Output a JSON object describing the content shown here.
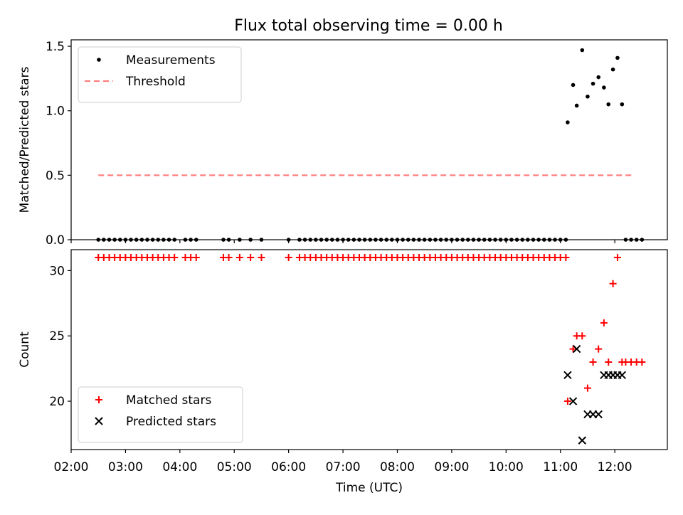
{
  "figure": {
    "title": "Flux total observing time = 0.00 h"
  },
  "chart_data": [
    {
      "type": "scatter",
      "ylabel": "Matched/Predicted stars",
      "xlabel": "",
      "x_format": "HH:MM",
      "xlim": [
        "02:00",
        "12:58"
      ],
      "ylim": [
        0,
        1.55
      ],
      "y_ticks": [
        0.0,
        0.5,
        1.0,
        1.5
      ],
      "y_tick_labels": [
        "0.0",
        "0.5",
        "1.0",
        "1.5"
      ],
      "legend_position": "upper-left",
      "grid": false,
      "series": [
        {
          "name": "Measurements",
          "marker": "dot",
          "color": "#000000",
          "points": [
            [
              "02:30",
              0
            ],
            [
              "02:36",
              0
            ],
            [
              "02:42",
              0
            ],
            [
              "02:48",
              0
            ],
            [
              "02:54",
              0
            ],
            [
              "03:00",
              0
            ],
            [
              "03:06",
              0
            ],
            [
              "03:12",
              0
            ],
            [
              "03:18",
              0
            ],
            [
              "03:24",
              0
            ],
            [
              "03:30",
              0
            ],
            [
              "03:36",
              0
            ],
            [
              "03:42",
              0
            ],
            [
              "03:48",
              0
            ],
            [
              "03:54",
              0
            ],
            [
              "04:06",
              0
            ],
            [
              "04:12",
              0
            ],
            [
              "04:18",
              0
            ],
            [
              "04:48",
              0
            ],
            [
              "04:54",
              0
            ],
            [
              "05:06",
              0
            ],
            [
              "05:18",
              0
            ],
            [
              "05:30",
              0
            ],
            [
              "06:00",
              0
            ],
            [
              "06:12",
              0
            ],
            [
              "06:18",
              0
            ],
            [
              "06:24",
              0
            ],
            [
              "06:30",
              0
            ],
            [
              "06:36",
              0
            ],
            [
              "06:42",
              0
            ],
            [
              "06:48",
              0
            ],
            [
              "06:54",
              0
            ],
            [
              "07:00",
              0
            ],
            [
              "07:06",
              0
            ],
            [
              "07:12",
              0
            ],
            [
              "07:18",
              0
            ],
            [
              "07:24",
              0
            ],
            [
              "07:30",
              0
            ],
            [
              "07:36",
              0
            ],
            [
              "07:42",
              0
            ],
            [
              "07:48",
              0
            ],
            [
              "07:54",
              0
            ],
            [
              "08:00",
              0
            ],
            [
              "08:06",
              0
            ],
            [
              "08:12",
              0
            ],
            [
              "08:18",
              0
            ],
            [
              "08:24",
              0
            ],
            [
              "08:30",
              0
            ],
            [
              "08:36",
              0
            ],
            [
              "08:42",
              0
            ],
            [
              "08:48",
              0
            ],
            [
              "08:54",
              0
            ],
            [
              "09:00",
              0
            ],
            [
              "09:06",
              0
            ],
            [
              "09:12",
              0
            ],
            [
              "09:18",
              0
            ],
            [
              "09:24",
              0
            ],
            [
              "09:30",
              0
            ],
            [
              "09:36",
              0
            ],
            [
              "09:42",
              0
            ],
            [
              "09:48",
              0
            ],
            [
              "09:54",
              0
            ],
            [
              "10:00",
              0
            ],
            [
              "10:06",
              0
            ],
            [
              "10:12",
              0
            ],
            [
              "10:18",
              0
            ],
            [
              "10:24",
              0
            ],
            [
              "10:30",
              0
            ],
            [
              "10:36",
              0
            ],
            [
              "10:42",
              0
            ],
            [
              "10:48",
              0
            ],
            [
              "10:54",
              0
            ],
            [
              "11:00",
              0
            ],
            [
              "11:06",
              0
            ],
            [
              "11:08",
              0.91
            ],
            [
              "11:14",
              1.2
            ],
            [
              "11:18",
              1.04
            ],
            [
              "11:24",
              1.47
            ],
            [
              "11:30",
              1.11
            ],
            [
              "11:36",
              1.21
            ],
            [
              "11:42",
              1.26
            ],
            [
              "11:48",
              1.18
            ],
            [
              "11:53",
              1.05
            ],
            [
              "11:58",
              1.32
            ],
            [
              "12:03",
              1.41
            ],
            [
              "12:08",
              1.05
            ],
            [
              "12:12",
              0
            ],
            [
              "12:18",
              0
            ],
            [
              "12:24",
              0
            ],
            [
              "12:30",
              0
            ]
          ]
        },
        {
          "name": "Threshold",
          "marker": "dashed-line",
          "color": "#ff7f7f",
          "points": [
            [
              "02:30",
              0.5
            ],
            [
              "12:20",
              0.5
            ]
          ]
        }
      ]
    },
    {
      "type": "scatter",
      "ylabel": "Count",
      "xlabel": "Time (UTC)",
      "x_format": "HH:MM",
      "xlim": [
        "02:00",
        "12:58"
      ],
      "ylim": [
        16.3,
        31.6
      ],
      "y_ticks": [
        20,
        25,
        30
      ],
      "y_tick_labels": [
        "20",
        "25",
        "30"
      ],
      "x_ticks": [
        "02:00",
        "03:00",
        "04:00",
        "05:00",
        "06:00",
        "07:00",
        "08:00",
        "09:00",
        "10:00",
        "11:00",
        "12:00"
      ],
      "x_tick_labels": [
        "02:00",
        "03:00",
        "04:00",
        "05:00",
        "06:00",
        "07:00",
        "08:00",
        "09:00",
        "10:00",
        "11:00",
        "12:00"
      ],
      "legend_position": "lower-left",
      "grid": false,
      "series": [
        {
          "name": "Matched stars",
          "marker": "plus",
          "color": "#ff0000",
          "points": [
            [
              "02:30",
              31
            ],
            [
              "02:36",
              31
            ],
            [
              "02:42",
              31
            ],
            [
              "02:48",
              31
            ],
            [
              "02:54",
              31
            ],
            [
              "03:00",
              31
            ],
            [
              "03:06",
              31
            ],
            [
              "03:12",
              31
            ],
            [
              "03:18",
              31
            ],
            [
              "03:24",
              31
            ],
            [
              "03:30",
              31
            ],
            [
              "03:36",
              31
            ],
            [
              "03:42",
              31
            ],
            [
              "03:48",
              31
            ],
            [
              "03:54",
              31
            ],
            [
              "04:06",
              31
            ],
            [
              "04:12",
              31
            ],
            [
              "04:18",
              31
            ],
            [
              "04:48",
              31
            ],
            [
              "04:54",
              31
            ],
            [
              "05:06",
              31
            ],
            [
              "05:18",
              31
            ],
            [
              "05:30",
              31
            ],
            [
              "06:00",
              31
            ],
            [
              "06:12",
              31
            ],
            [
              "06:18",
              31
            ],
            [
              "06:24",
              31
            ],
            [
              "06:30",
              31
            ],
            [
              "06:36",
              31
            ],
            [
              "06:42",
              31
            ],
            [
              "06:48",
              31
            ],
            [
              "06:54",
              31
            ],
            [
              "07:00",
              31
            ],
            [
              "07:06",
              31
            ],
            [
              "07:12",
              31
            ],
            [
              "07:18",
              31
            ],
            [
              "07:24",
              31
            ],
            [
              "07:30",
              31
            ],
            [
              "07:36",
              31
            ],
            [
              "07:42",
              31
            ],
            [
              "07:48",
              31
            ],
            [
              "07:54",
              31
            ],
            [
              "08:00",
              31
            ],
            [
              "08:06",
              31
            ],
            [
              "08:12",
              31
            ],
            [
              "08:18",
              31
            ],
            [
              "08:24",
              31
            ],
            [
              "08:30",
              31
            ],
            [
              "08:36",
              31
            ],
            [
              "08:42",
              31
            ],
            [
              "08:48",
              31
            ],
            [
              "08:54",
              31
            ],
            [
              "09:00",
              31
            ],
            [
              "09:06",
              31
            ],
            [
              "09:12",
              31
            ],
            [
              "09:18",
              31
            ],
            [
              "09:24",
              31
            ],
            [
              "09:30",
              31
            ],
            [
              "09:36",
              31
            ],
            [
              "09:42",
              31
            ],
            [
              "09:48",
              31
            ],
            [
              "09:54",
              31
            ],
            [
              "10:00",
              31
            ],
            [
              "10:06",
              31
            ],
            [
              "10:12",
              31
            ],
            [
              "10:18",
              31
            ],
            [
              "10:24",
              31
            ],
            [
              "10:30",
              31
            ],
            [
              "10:36",
              31
            ],
            [
              "10:42",
              31
            ],
            [
              "10:48",
              31
            ],
            [
              "10:54",
              31
            ],
            [
              "11:00",
              31
            ],
            [
              "11:06",
              31
            ],
            [
              "11:08",
              20
            ],
            [
              "11:14",
              24
            ],
            [
              "11:18",
              25
            ],
            [
              "11:24",
              25
            ],
            [
              "11:30",
              21
            ],
            [
              "11:36",
              23
            ],
            [
              "11:42",
              24
            ],
            [
              "11:48",
              26
            ],
            [
              "11:53",
              23
            ],
            [
              "11:58",
              29
            ],
            [
              "12:03",
              31
            ],
            [
              "12:08",
              23
            ],
            [
              "12:12",
              23
            ],
            [
              "12:18",
              23
            ],
            [
              "12:24",
              23
            ],
            [
              "12:30",
              23
            ]
          ]
        },
        {
          "name": "Predicted stars",
          "marker": "x",
          "color": "#000000",
          "points": [
            [
              "11:08",
              22
            ],
            [
              "11:14",
              20
            ],
            [
              "11:18",
              24
            ],
            [
              "11:24",
              17
            ],
            [
              "11:30",
              19
            ],
            [
              "11:36",
              19
            ],
            [
              "11:42",
              19
            ],
            [
              "11:48",
              22
            ],
            [
              "11:53",
              22
            ],
            [
              "11:58",
              22
            ],
            [
              "12:03",
              22
            ],
            [
              "12:08",
              22
            ]
          ]
        }
      ]
    }
  ]
}
